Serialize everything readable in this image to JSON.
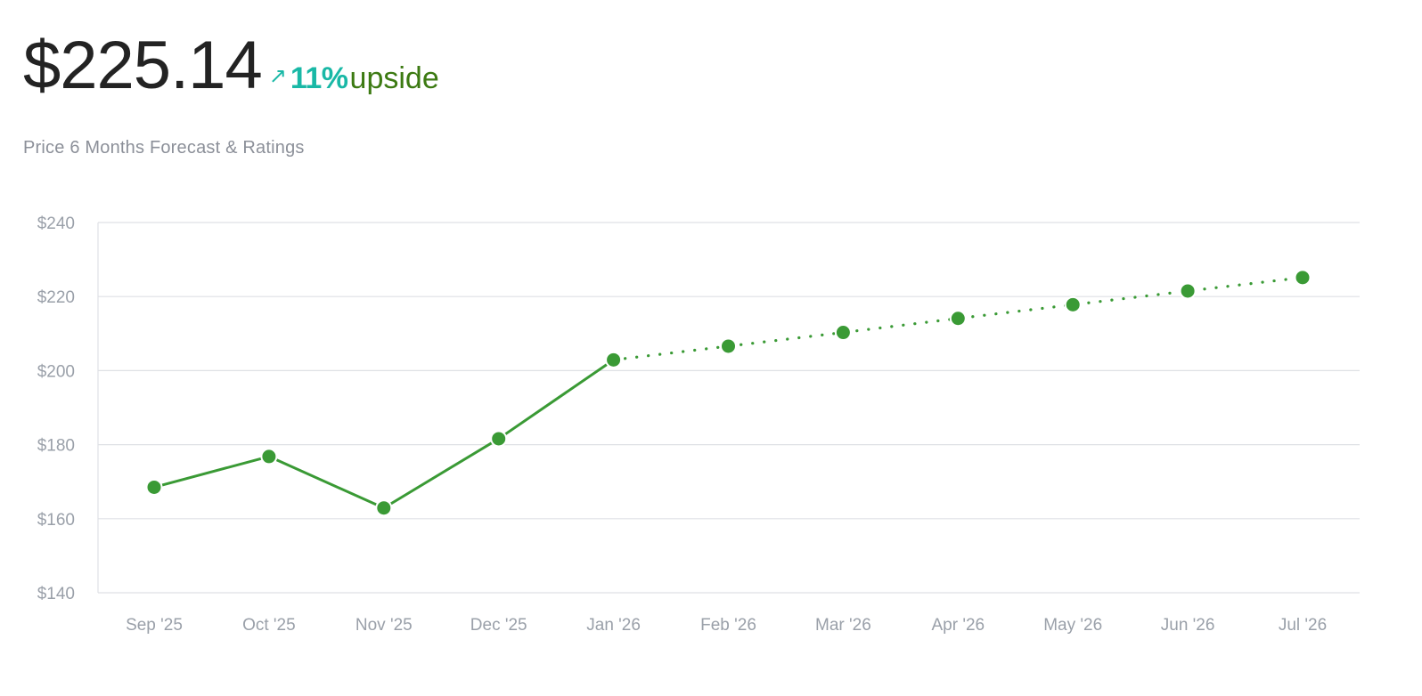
{
  "header": {
    "price": "$225.14",
    "arrow_icon": "arrow-up-right-icon",
    "upside_percent": "11%",
    "upside_label": "upside"
  },
  "subtitle": "Price 6 Months Forecast & Ratings",
  "colors": {
    "series": "#3a9a35",
    "accent": "#19b8a6",
    "upside_text": "#3c7a12",
    "grid": "#dfe1e5",
    "tick_text": "#9aa0a9"
  },
  "chart_data": {
    "type": "line",
    "categories": [
      "Sep '25",
      "Oct '25",
      "Nov '25",
      "Dec '25",
      "Jan '26",
      "Feb '26",
      "Mar '26",
      "Apr '26",
      "May '26",
      "Jun '26",
      "Jul '26"
    ],
    "series": [
      {
        "style": "solid",
        "points": [
          {
            "x": "Sep '25",
            "y": 168.5
          },
          {
            "x": "Oct '25",
            "y": 176.8
          },
          {
            "x": "Nov '25",
            "y": 162.9
          },
          {
            "x": "Dec '25",
            "y": 181.6
          },
          {
            "x": "Jan '26",
            "y": 202.9
          }
        ]
      },
      {
        "style": "dotted",
        "points": [
          {
            "x": "Jan '26",
            "y": 202.9
          },
          {
            "x": "Feb '26",
            "y": 206.6
          },
          {
            "x": "Mar '26",
            "y": 210.3
          },
          {
            "x": "Apr '26",
            "y": 214.1
          },
          {
            "x": "May '26",
            "y": 217.8
          },
          {
            "x": "Jun '26",
            "y": 221.5
          },
          {
            "x": "Jul '26",
            "y": 225.14
          }
        ]
      }
    ],
    "yticks": [
      140,
      160,
      180,
      200,
      220,
      240
    ],
    "ytick_labels": [
      "$140",
      "$160",
      "$180",
      "$200",
      "$220",
      "$240"
    ],
    "ylim": [
      140,
      240
    ],
    "grid": true,
    "legend": "none",
    "title": "",
    "xlabel": "",
    "ylabel": ""
  }
}
